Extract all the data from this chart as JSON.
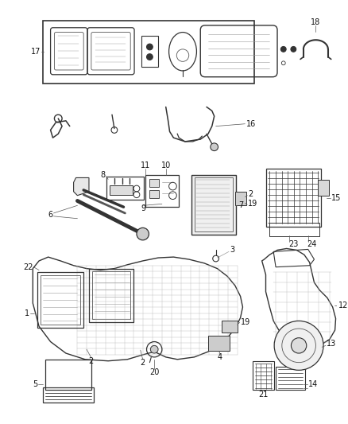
{
  "bg_color": "#ffffff",
  "fig_width": 4.38,
  "fig_height": 5.33,
  "dpi": 100,
  "gray": "#555555",
  "dgray": "#333333",
  "lgray": "#999999",
  "label_fontsize": 7.0
}
